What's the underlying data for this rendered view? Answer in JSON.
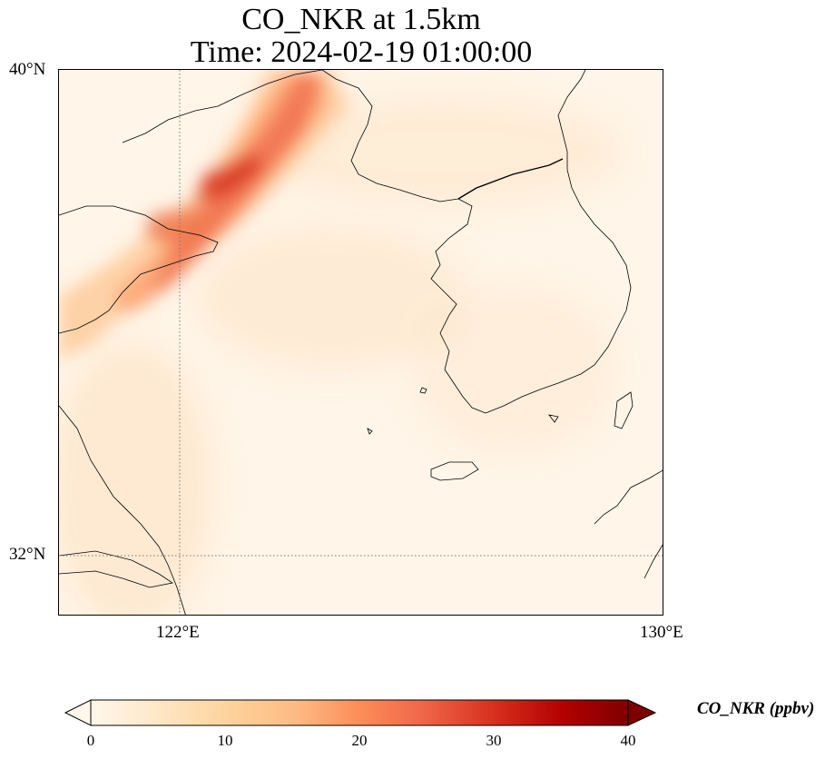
{
  "title": {
    "line1": "CO_NKR at 1.5km",
    "line2": "Time: 2024-02-19 01:00:00"
  },
  "axes": {
    "lat_ticks": [
      "40°N",
      "32°N"
    ],
    "lon_ticks": [
      "122°E",
      "130°E"
    ]
  },
  "colorbar": {
    "label": "CO_NKR (ppbv)",
    "ticks": [
      "0",
      "10",
      "20",
      "30",
      "40"
    ],
    "range": [
      0,
      40
    ],
    "colormap": "OrRd",
    "extend": "both",
    "colors": [
      "#fff7ec",
      "#fee8c8",
      "#fdd49e",
      "#fdbb84",
      "#fc8d59",
      "#ef6548",
      "#d7301f",
      "#b30000",
      "#7f0000"
    ]
  },
  "chart_data": {
    "type": "heatmap",
    "variable": "CO_NKR",
    "units": "ppbv",
    "level": "1.5km",
    "time": "2024-02-19 01:00:00",
    "lon_range": [
      120,
      130
    ],
    "lat_range": [
      31,
      40
    ],
    "gridlines": {
      "lon": [
        122
      ],
      "lat": [
        32
      ]
    },
    "plumes": [
      {
        "center_lon": 122.6,
        "center_lat": 38.4,
        "value": 35
      },
      {
        "center_lon": 123.3,
        "center_lat": 39.3,
        "value": 27
      },
      {
        "center_lon": 122.0,
        "center_lat": 37.4,
        "value": 26
      },
      {
        "center_lon": 121.3,
        "center_lat": 36.2,
        "value": 19
      },
      {
        "center_lon": 120.6,
        "center_lat": 35.4,
        "value": 14
      }
    ],
    "background_value": 3
  }
}
